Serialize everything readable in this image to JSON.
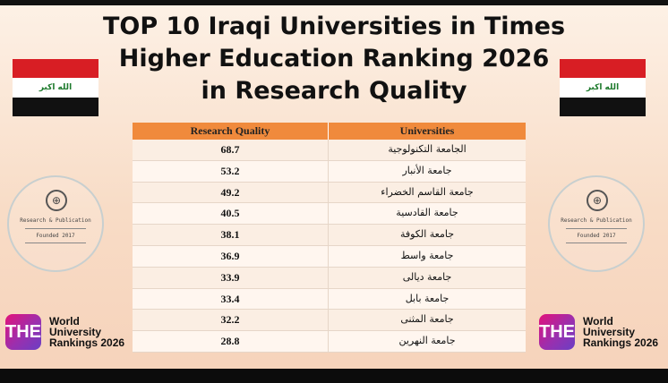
{
  "title": {
    "line1": "TOP 10 Iraqi Universities in Times",
    "line2": "Higher Education Ranking 2026",
    "line3": "in Research Quality"
  },
  "flag": {
    "emblem": "الله اكبر",
    "colors": [
      "#d81e24",
      "#ffffff",
      "#111111"
    ]
  },
  "seal": {
    "name": "Research & Publication",
    "founded": "Founded 2017",
    "icon": "globe-icon"
  },
  "the_badge": {
    "logo": "THE",
    "line1": "World",
    "line2": "University",
    "line3": "Rankings 2026"
  },
  "table": {
    "headers": {
      "score": "Research Quality",
      "university": "Universities"
    },
    "rows": [
      {
        "score": "68.7",
        "university": "الجامعة التكنولوجية"
      },
      {
        "score": "53.2",
        "university": "جامعة الأنبار"
      },
      {
        "score": "49.2",
        "university": "جامعة القاسم الخضراء"
      },
      {
        "score": "40.5",
        "university": "جامعة القادسية"
      },
      {
        "score": "38.1",
        "university": "جامعة الكوفة"
      },
      {
        "score": "36.9",
        "university": "جامعة واسط"
      },
      {
        "score": "33.9",
        "university": "جامعة ديالى"
      },
      {
        "score": "33.4",
        "university": "جامعة بابل"
      },
      {
        "score": "32.2",
        "university": "جامعة المثنى"
      },
      {
        "score": "28.8",
        "university": "جامعة النهرين"
      }
    ]
  },
  "colors": {
    "header": "#f08a3c",
    "the_gradient_start": "#e2127a",
    "the_gradient_end": "#6a3fc4"
  }
}
